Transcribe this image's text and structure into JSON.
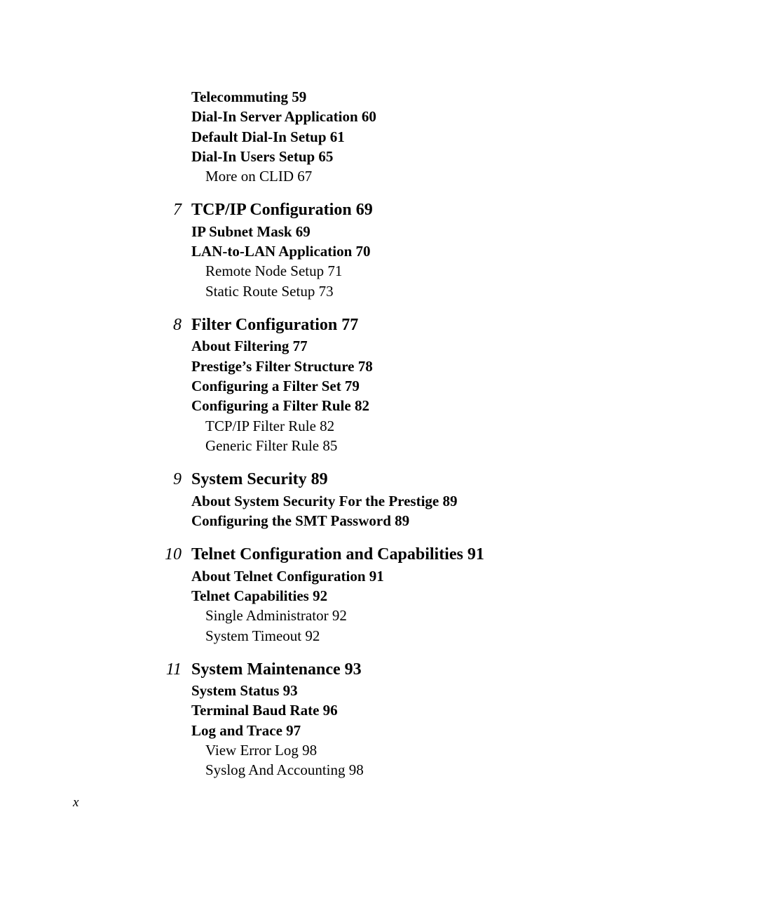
{
  "colors": {
    "page_bg": "#ffffff",
    "text": "#000000"
  },
  "typography": {
    "font_family": "Times New Roman",
    "chapter_fontsize": 24,
    "section_fontsize": 21,
    "subsection_fontsize": 21,
    "pagenum_fontsize": 19
  },
  "leading_sections": [
    {
      "text": "Telecommuting 59"
    },
    {
      "text": "Dial-In Server Application 60"
    },
    {
      "text": "Default Dial-In Setup 61"
    },
    {
      "text": "Dial-In Users Setup 65"
    }
  ],
  "leading_subsections": [
    {
      "text": "More on CLID 67"
    }
  ],
  "chapters": [
    {
      "num": "7",
      "title": "TCP/IP Configuration 69",
      "sections": [
        {
          "text": "IP Subnet Mask 69",
          "subs": []
        },
        {
          "text": "LAN-to-LAN Application 70",
          "subs": [
            {
              "text": "Remote Node Setup 71"
            },
            {
              "text": "Static Route Setup 73"
            }
          ]
        }
      ]
    },
    {
      "num": "8",
      "title": "Filter Configuration 77",
      "sections": [
        {
          "text": "About Filtering 77",
          "subs": []
        },
        {
          "text": "Prestige’s Filter Structure 78",
          "subs": []
        },
        {
          "text": "Configuring a Filter Set 79",
          "subs": []
        },
        {
          "text": "Configuring a Filter Rule 82",
          "subs": [
            {
              "text": "TCP/IP Filter Rule 82"
            },
            {
              "text": "Generic Filter Rule 85"
            }
          ]
        }
      ]
    },
    {
      "num": "9",
      "title": "System Security 89",
      "sections": [
        {
          "text": "About System Security For the Prestige 89",
          "subs": []
        },
        {
          "text": "Configuring the SMT Password 89",
          "subs": []
        }
      ]
    },
    {
      "num": "10",
      "title": "Telnet Configuration and Capabilities 91",
      "sections": [
        {
          "text": "About Telnet Configuration 91",
          "subs": []
        },
        {
          "text": "Telnet Capabilities 92",
          "subs": [
            {
              "text": "Single Administrator 92"
            },
            {
              "text": "System Timeout 92"
            }
          ]
        }
      ]
    },
    {
      "num": "11",
      "title": "System Maintenance 93",
      "sections": [
        {
          "text": "System Status 93",
          "subs": []
        },
        {
          "text": "Terminal Baud Rate 96",
          "subs": []
        },
        {
          "text": "Log and Trace 97",
          "subs": [
            {
              "text": "View Error Log 98"
            },
            {
              "text": "Syslog And Accounting 98"
            }
          ]
        }
      ]
    }
  ],
  "page_footer": "x"
}
